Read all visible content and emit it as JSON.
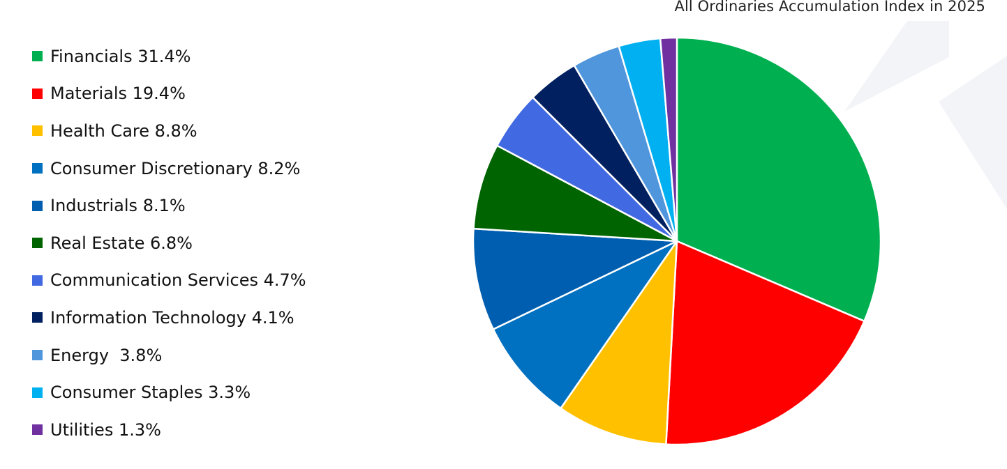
{
  "chart_data": {
    "type": "pie",
    "title": "All Ordinaries Accumulation Index in 2025",
    "legend_position": "left",
    "slices": [
      {
        "label": "Financials 31.4%",
        "value": 31.4,
        "color": "#00B050"
      },
      {
        "label": "Materials 19.4%",
        "value": 19.4,
        "color": "#FF0000"
      },
      {
        "label": "Health Care 8.8%",
        "value": 8.8,
        "color": "#FFC000"
      },
      {
        "label": "Consumer Discretionary 8.2%",
        "value": 8.2,
        "color": "#0070C0"
      },
      {
        "label": "Industrials 8.1%",
        "value": 8.1,
        "color": "#005EB0"
      },
      {
        "label": "Real Estate 6.8%",
        "value": 6.8,
        "color": "#006400"
      },
      {
        "label": "Communication Services 4.7%",
        "value": 4.7,
        "color": "#4169E1"
      },
      {
        "label": "Information Technology 4.1%",
        "value": 4.1,
        "color": "#002060"
      },
      {
        "label": "Energy  3.8%",
        "value": 3.8,
        "color": "#5096DC"
      },
      {
        "label": "Consumer Staples 3.3%",
        "value": 3.3,
        "color": "#00B0F0"
      },
      {
        "label": "Utilities 1.3%",
        "value": 1.3,
        "color": "#7030A0"
      }
    ]
  }
}
